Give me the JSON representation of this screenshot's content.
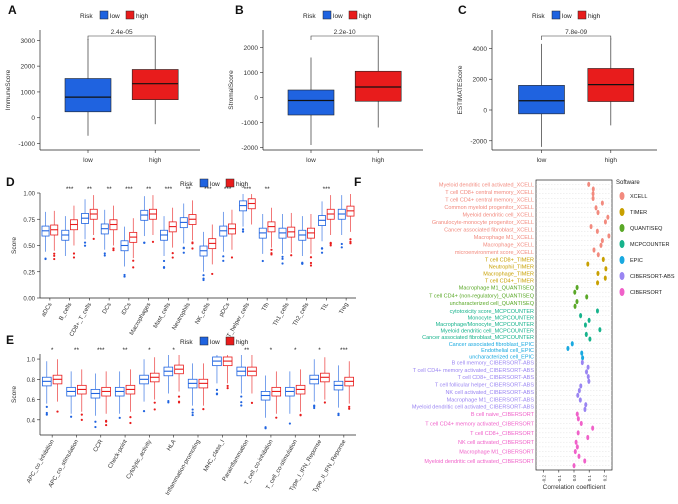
{
  "colors": {
    "low": "#2f6fd8",
    "high": "#e02424",
    "low_box": "#1f63e0",
    "high_box": "#e81c1c",
    "grid": "#d9d9d9"
  },
  "chart_data": [
    {
      "panel": "A",
      "type": "box",
      "legend_title": "Risk",
      "legend": [
        "low",
        "high"
      ],
      "ylabel": "ImmuneScore",
      "categories": [
        "low",
        "high"
      ],
      "ylim": [
        -1250,
        3400
      ],
      "yticks": [
        -1000,
        0,
        1000,
        2000,
        3000
      ],
      "boxes": [
        {
          "group": "low",
          "min": -700,
          "q1": 230,
          "median": 800,
          "q3": 1520,
          "max": 3050
        },
        {
          "group": "high",
          "min": -250,
          "q1": 700,
          "median": 1320,
          "q3": 1870,
          "max": 3080
        }
      ],
      "pvalue": "2.4e-05"
    },
    {
      "panel": "B",
      "type": "box",
      "legend_title": "Risk",
      "legend": [
        "low",
        "high"
      ],
      "ylabel": "StromalScore",
      "categories": [
        "low",
        "high"
      ],
      "ylim": [
        -2100,
        2700
      ],
      "yticks": [
        -2000,
        -1000,
        0,
        1000,
        2000
      ],
      "boxes": [
        {
          "group": "low",
          "min": -1900,
          "q1": -700,
          "median": -120,
          "q3": 300,
          "max": 1600
        },
        {
          "group": "high",
          "min": -1200,
          "q1": -150,
          "median": 420,
          "q3": 1050,
          "max": 2300
        }
      ],
      "pvalue": "2.2e-10"
    },
    {
      "panel": "C",
      "type": "box",
      "legend_title": "Risk",
      "legend": [
        "low",
        "high"
      ],
      "ylabel": "ESTIMATEScore",
      "categories": [
        "low",
        "high"
      ],
      "ylim": [
        -2600,
        5200
      ],
      "yticks": [
        -2000,
        0,
        2000,
        4000
      ],
      "boxes": [
        {
          "group": "low",
          "min": -2400,
          "q1": -250,
          "median": 600,
          "q3": 1600,
          "max": 4300
        },
        {
          "group": "high",
          "min": -1000,
          "q1": 550,
          "median": 1650,
          "q3": 2700,
          "max": 4700
        }
      ],
      "pvalue": "7.8e-09"
    },
    {
      "panel": "D",
      "type": "box",
      "legend_title": "Risk",
      "legend": [
        "low",
        "high"
      ],
      "ylabel": "Score",
      "ylim": [
        0,
        1.0
      ],
      "yticks": [
        "0.00",
        "0.25",
        "0.50",
        "0.75",
        "1.00"
      ],
      "categories": [
        "aDCs",
        "B_cells",
        "CD8+_T_cells",
        "DCs",
        "iDCs",
        "Macrophages",
        "Mast_cells",
        "Neutrophils",
        "NK_cells",
        "pDCs",
        "T_helper_cells",
        "Tfh",
        "Th1_cells",
        "Th2_cells",
        "TIL",
        "Treg"
      ],
      "significance": [
        "",
        "***",
        "**",
        "**",
        "***",
        "**",
        "***",
        "**",
        "***",
        "***",
        "***",
        "**",
        "",
        "",
        "***",
        ""
      ],
      "low_medians": [
        0.64,
        0.6,
        0.76,
        0.66,
        0.5,
        0.79,
        0.6,
        0.72,
        0.45,
        0.64,
        0.88,
        0.62,
        0.62,
        0.6,
        0.74,
        0.8
      ],
      "high_medians": [
        0.65,
        0.7,
        0.8,
        0.7,
        0.58,
        0.8,
        0.68,
        0.75,
        0.52,
        0.66,
        0.9,
        0.68,
        0.63,
        0.62,
        0.8,
        0.83
      ]
    },
    {
      "panel": "E",
      "type": "box",
      "legend_title": "Risk",
      "legend": [
        "low",
        "high"
      ],
      "ylabel": "Score",
      "ylim": [
        0.25,
        1.05
      ],
      "yticks": [
        "0.4",
        "0.6",
        "0.8",
        "1.0"
      ],
      "categories": [
        "APC_co_inhibition",
        "APC_co_stimulation",
        "CCR",
        "Check-point",
        "Cytolytic_activity",
        "HLA",
        "Inflammation-promoting",
        "MHC_class_I",
        "Parainflammation",
        "T_cell_co-inhibition",
        "T_cell_co-stimulation",
        "Type_I_IFN_Reponse",
        "Type_II_IFN_Reponse"
      ],
      "significance": [
        "*",
        "**",
        "***",
        "**",
        "*",
        "*",
        "",
        "",
        "**",
        "*",
        "*",
        "*",
        "***"
      ],
      "low_medians": [
        0.78,
        0.68,
        0.66,
        0.68,
        0.8,
        0.88,
        0.76,
        0.98,
        0.88,
        0.64,
        0.68,
        0.8,
        0.74
      ],
      "high_medians": [
        0.8,
        0.7,
        0.68,
        0.7,
        0.82,
        0.9,
        0.76,
        0.98,
        0.88,
        0.68,
        0.7,
        0.82,
        0.78
      ]
    },
    {
      "panel": "F",
      "type": "scatter",
      "legend_title": "Software",
      "xlabel": "Correlation coefficient",
      "xticks": [
        "-0.2",
        "-0.1",
        "0.0",
        "0.1",
        "0.2"
      ],
      "xlim": [
        -0.25,
        0.25
      ],
      "software": [
        {
          "name": "XCELL",
          "color": "#f28a7e",
          "n": 16,
          "labels": [
            "Myeloid dendritic cell activated_XCELL",
            "T cell CD8+ central memory_XCELL",
            "T cell CD4+ central memory_XCELL",
            "Common myeloid progenitor_XCELL",
            "Myeloid dendritic cell_XCELL",
            "Granulocyte-monocyte progenitor_XCELL",
            "Cancer associated fibroblast_XCELL",
            "Macrophage M1_XCELL",
            "Macrophage_XCELL",
            "microenvironment score_XCELL"
          ]
        },
        {
          "name": "TIMER",
          "color": "#c8a000",
          "n": 6,
          "labels": [
            "T cell CD8+_TIMER",
            "Neutrophil_TIMER",
            "Macrophage_TIMER",
            "T cell CD4+_TIMER"
          ]
        },
        {
          "name": "QUANTISEQ",
          "color": "#5aa827",
          "n": 5,
          "labels": [
            "Macrophage M1_QUANTISEQ",
            "T cell CD4+ (non-regulatory)_QUANTISEQ",
            "uncharacterized cell_QUANTISEQ"
          ]
        },
        {
          "name": "MCPCOUNTER",
          "color": "#17b38c",
          "n": 7,
          "labels": [
            "cytotoxicity score_MCPCOUNTER",
            "Monocyte_MCPCOUNTER",
            "Macrophage/Monocyte_MCPCOUNTER",
            "Myeloid dendritic cell_MCPCOUNTER",
            "Cancer associated fibroblast_MCPCOUNTER"
          ]
        },
        {
          "name": "EPIC",
          "color": "#19a9e0",
          "n": 4,
          "labels": [
            "Cancer associated fibroblast_EPIC",
            "Endothelial cell_EPIC",
            "uncharacterized cell_EPIC"
          ]
        },
        {
          "name": "CIBERSORT-ABS",
          "color": "#9a85f2",
          "n": 11,
          "labels": [
            "B cell memory_CIBERSORT-ABS",
            "T cell CD4+ memory activated_CIBERSORT-ABS",
            "T cell CD8+_CIBERSORT-ABS",
            "T cell follicular helper_CIBERSORT-ABS",
            "NK cell activated_CIBERSORT-ABS",
            "Macrophage M1_CIBERSORT-ABS",
            "Myeloid dendritic cell activated_CIBERSORT-ABS"
          ]
        },
        {
          "name": "CIBERSORT",
          "color": "#f061c9",
          "n": 12,
          "labels": [
            "B cell naive_CIBERSORT",
            "T cell CD4+ memory activated_CIBERSORT",
            "T cell CD8+_CIBERSORT",
            "NK cell activated_CIBERSORT",
            "Macrophage M1_CIBERSORT",
            "Myeloid dendritic cell activated_CIBERSORT"
          ]
        }
      ]
    }
  ]
}
